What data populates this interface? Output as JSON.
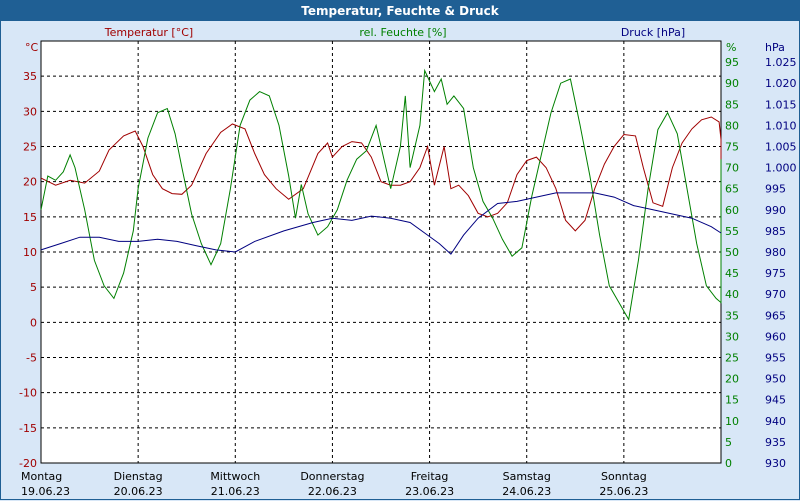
{
  "window": {
    "title": "Temperatur, Feuchte & Druck"
  },
  "colors": {
    "temperature": "#a00000",
    "humidity": "#008000",
    "pressure": "#000080",
    "title_bar": "#1f5f94",
    "background": "#d8e7f7",
    "plot_background": "#ffffff"
  },
  "chart_data": {
    "type": "line",
    "title": "Temperatur, Feuchte & Druck",
    "grid": true,
    "legend": "top",
    "x_ticks": [
      {
        "day": "Montag",
        "date": "19.06.23"
      },
      {
        "day": "Dienstag",
        "date": "20.06.23"
      },
      {
        "day": "Mittwoch",
        "date": "21.06.23"
      },
      {
        "day": "Donnerstag",
        "date": "22.06.23"
      },
      {
        "day": "Freitag",
        "date": "23.06.23"
      },
      {
        "day": "Samstag",
        "date": "24.06.23"
      },
      {
        "day": "Sonntag",
        "date": "25.06.23"
      }
    ],
    "x_range_days": [
      0,
      7
    ],
    "axes": {
      "temperature": {
        "label": "Temperatur [°C]",
        "unit": "°C",
        "range": [
          -20,
          40
        ],
        "ticks": [
          "-20",
          "-15",
          "-10",
          "-5",
          "0",
          "5",
          "10",
          "15",
          "20",
          "25",
          "30",
          "35"
        ]
      },
      "humidity": {
        "label": "rel. Feuchte [%]",
        "unit": "%",
        "range": [
          0,
          100
        ],
        "ticks": [
          "0",
          "5",
          "10",
          "15",
          "20",
          "25",
          "30",
          "35",
          "40",
          "45",
          "50",
          "55",
          "60",
          "65",
          "70",
          "75",
          "80",
          "85",
          "90",
          "95"
        ]
      },
      "pressure": {
        "label": "Druck [hPa]",
        "unit": "hPa",
        "range": [
          930,
          1030
        ],
        "ticks": [
          "930",
          "935",
          "940",
          "945",
          "950",
          "955",
          "960",
          "965",
          "970",
          "975",
          "980",
          "985",
          "990",
          "995",
          "1.000",
          "1.005",
          "1.010",
          "1.015",
          "1.020",
          "1.025"
        ]
      }
    },
    "series": [
      {
        "name": "Temperatur [°C]",
        "axis": "temperature",
        "points": [
          [
            0.0,
            20.5
          ],
          [
            0.15,
            19.5
          ],
          [
            0.3,
            20.2
          ],
          [
            0.45,
            19.8
          ],
          [
            0.6,
            21.5
          ],
          [
            0.7,
            24.5
          ],
          [
            0.85,
            26.5
          ],
          [
            0.97,
            27.2
          ],
          [
            1.05,
            25.0
          ],
          [
            1.15,
            21.0
          ],
          [
            1.25,
            19.0
          ],
          [
            1.35,
            18.3
          ],
          [
            1.45,
            18.2
          ],
          [
            1.55,
            19.5
          ],
          [
            1.7,
            24.0
          ],
          [
            1.85,
            27.0
          ],
          [
            1.97,
            28.2
          ],
          [
            2.1,
            27.5
          ],
          [
            2.2,
            24.0
          ],
          [
            2.3,
            21.0
          ],
          [
            2.42,
            19.0
          ],
          [
            2.55,
            17.5
          ],
          [
            2.7,
            19.0
          ],
          [
            2.85,
            24.0
          ],
          [
            2.95,
            25.5
          ],
          [
            3.0,
            23.5
          ],
          [
            3.1,
            25.0
          ],
          [
            3.2,
            25.7
          ],
          [
            3.3,
            25.5
          ],
          [
            3.4,
            23.5
          ],
          [
            3.5,
            20.0
          ],
          [
            3.6,
            19.5
          ],
          [
            3.7,
            19.5
          ],
          [
            3.8,
            20.0
          ],
          [
            3.9,
            22.0
          ],
          [
            3.98,
            25.0
          ],
          [
            4.05,
            19.5
          ],
          [
            4.15,
            25.0
          ],
          [
            4.22,
            19.0
          ],
          [
            4.3,
            19.5
          ],
          [
            4.4,
            18.0
          ],
          [
            4.5,
            15.5
          ],
          [
            4.6,
            15.0
          ],
          [
            4.7,
            15.5
          ],
          [
            4.8,
            17.0
          ],
          [
            4.9,
            21.0
          ],
          [
            5.0,
            23.0
          ],
          [
            5.1,
            23.5
          ],
          [
            5.2,
            22.0
          ],
          [
            5.3,
            19.0
          ],
          [
            5.4,
            14.5
          ],
          [
            5.5,
            13.0
          ],
          [
            5.6,
            14.5
          ],
          [
            5.7,
            19.0
          ],
          [
            5.8,
            22.5
          ],
          [
            5.9,
            25.0
          ],
          [
            6.0,
            26.7
          ],
          [
            6.12,
            26.5
          ],
          [
            6.2,
            22.0
          ],
          [
            6.3,
            17.0
          ],
          [
            6.4,
            16.5
          ],
          [
            6.5,
            22.0
          ],
          [
            6.6,
            25.5
          ],
          [
            6.7,
            27.5
          ],
          [
            6.8,
            28.8
          ],
          [
            6.9,
            29.2
          ],
          [
            6.98,
            28.5
          ],
          [
            7.05,
            26.0
          ],
          [
            7.15,
            21.5
          ],
          [
            7.22,
            20.5
          ]
        ]
      },
      {
        "name": "rel. Feuchte [%]",
        "axis": "humidity",
        "points": [
          [
            0.0,
            60
          ],
          [
            0.07,
            68
          ],
          [
            0.15,
            67
          ],
          [
            0.23,
            69
          ],
          [
            0.3,
            73
          ],
          [
            0.35,
            70
          ],
          [
            0.45,
            60
          ],
          [
            0.55,
            48
          ],
          [
            0.65,
            42
          ],
          [
            0.75,
            39
          ],
          [
            0.85,
            45
          ],
          [
            0.95,
            55
          ],
          [
            1.0,
            65
          ],
          [
            1.1,
            77
          ],
          [
            1.2,
            83
          ],
          [
            1.3,
            84
          ],
          [
            1.38,
            78
          ],
          [
            1.45,
            70
          ],
          [
            1.55,
            59
          ],
          [
            1.65,
            52
          ],
          [
            1.75,
            47
          ],
          [
            1.85,
            52
          ],
          [
            1.95,
            65
          ],
          [
            2.05,
            80
          ],
          [
            2.15,
            86
          ],
          [
            2.25,
            88
          ],
          [
            2.35,
            87
          ],
          [
            2.45,
            80
          ],
          [
            2.55,
            68
          ],
          [
            2.62,
            58
          ],
          [
            2.68,
            66
          ],
          [
            2.75,
            59
          ],
          [
            2.85,
            54
          ],
          [
            2.95,
            56
          ],
          [
            3.05,
            60
          ],
          [
            3.15,
            67
          ],
          [
            3.25,
            72
          ],
          [
            3.35,
            74
          ],
          [
            3.45,
            80
          ],
          [
            3.5,
            75
          ],
          [
            3.6,
            65
          ],
          [
            3.7,
            75
          ],
          [
            3.75,
            87
          ],
          [
            3.8,
            70
          ],
          [
            3.9,
            80
          ],
          [
            3.95,
            93
          ],
          [
            4.05,
            88
          ],
          [
            4.12,
            91
          ],
          [
            4.18,
            85
          ],
          [
            4.25,
            87
          ],
          [
            4.35,
            84
          ],
          [
            4.45,
            70
          ],
          [
            4.55,
            62
          ],
          [
            4.65,
            58
          ],
          [
            4.75,
            53
          ],
          [
            4.85,
            49
          ],
          [
            4.95,
            51
          ],
          [
            5.05,
            63
          ],
          [
            5.15,
            73
          ],
          [
            5.25,
            83
          ],
          [
            5.35,
            90
          ],
          [
            5.45,
            91
          ],
          [
            5.55,
            80
          ],
          [
            5.65,
            68
          ],
          [
            5.75,
            54
          ],
          [
            5.85,
            42
          ],
          [
            5.95,
            38
          ],
          [
            6.05,
            34
          ],
          [
            6.15,
            48
          ],
          [
            6.25,
            65
          ],
          [
            6.35,
            79
          ],
          [
            6.45,
            83
          ],
          [
            6.55,
            78
          ],
          [
            6.65,
            65
          ],
          [
            6.75,
            52
          ],
          [
            6.85,
            42
          ],
          [
            6.95,
            39
          ],
          [
            7.05,
            38
          ],
          [
            7.12,
            42
          ],
          [
            7.22,
            72
          ]
        ]
      },
      {
        "name": "Druck [hPa]",
        "axis": "pressure",
        "points": [
          [
            0.0,
            980.5
          ],
          [
            0.2,
            982.0
          ],
          [
            0.4,
            983.5
          ],
          [
            0.6,
            983.5
          ],
          [
            0.8,
            982.5
          ],
          [
            1.0,
            982.5
          ],
          [
            1.2,
            983.0
          ],
          [
            1.4,
            982.5
          ],
          [
            1.6,
            981.5
          ],
          [
            1.8,
            980.5
          ],
          [
            2.0,
            980.0
          ],
          [
            2.2,
            982.5
          ],
          [
            2.5,
            985.0
          ],
          [
            2.8,
            987.0
          ],
          [
            3.0,
            988.0
          ],
          [
            3.2,
            987.5
          ],
          [
            3.4,
            988.5
          ],
          [
            3.6,
            988.0
          ],
          [
            3.8,
            987.0
          ],
          [
            3.98,
            984.0
          ],
          [
            4.1,
            982.0
          ],
          [
            4.22,
            979.5
          ],
          [
            4.35,
            984.0
          ],
          [
            4.5,
            988.0
          ],
          [
            4.7,
            991.5
          ],
          [
            4.9,
            992.0
          ],
          [
            5.1,
            993.0
          ],
          [
            5.3,
            994.0
          ],
          [
            5.5,
            994.0
          ],
          [
            5.7,
            994.0
          ],
          [
            5.9,
            993.0
          ],
          [
            6.1,
            991.0
          ],
          [
            6.3,
            990.0
          ],
          [
            6.5,
            989.0
          ],
          [
            6.7,
            988.0
          ],
          [
            6.9,
            986.0
          ],
          [
            7.05,
            984.5
          ],
          [
            7.22,
            984.5
          ]
        ]
      }
    ]
  }
}
